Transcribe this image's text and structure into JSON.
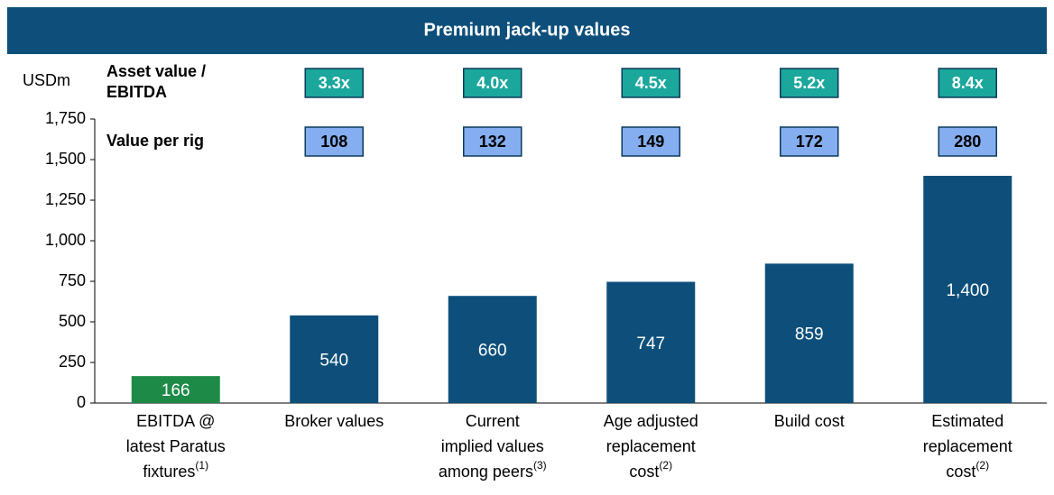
{
  "chart_data": {
    "type": "bar",
    "title": "Premium jack-up values",
    "unit_label": "USDm",
    "categories": [
      [
        "EBITDA @",
        "latest Paratus",
        "fixtures"
      ],
      [
        "Broker values"
      ],
      [
        "Current",
        "implied values",
        "among peers"
      ],
      [
        "Age adjusted",
        "replacement",
        "cost"
      ],
      [
        "Build cost"
      ],
      [
        "Estimated",
        "replacement",
        "cost"
      ]
    ],
    "category_notes": [
      "(1)",
      null,
      "(3)",
      "(2)",
      null,
      "(2)"
    ],
    "values": [
      166,
      540,
      660,
      747,
      859,
      1400
    ],
    "value_labels": [
      "166",
      "540",
      "660",
      "747",
      "859",
      "1,400"
    ],
    "colors": [
      "#1e8a48",
      "#0d4f7a",
      "#0d4f7a",
      "#0d4f7a",
      "#0d4f7a",
      "#0d4f7a"
    ],
    "ylim": [
      0,
      1750
    ],
    "yticks": [
      0,
      250,
      500,
      750,
      {
        "value": 1000,
        "label": "1,000"
      },
      {
        "value": 1250,
        "label": "1,250"
      },
      {
        "value": 1500,
        "label": "1,500"
      },
      {
        "value": 1750,
        "label": "1,750"
      }
    ],
    "multiples": {
      "label": [
        "Asset value /",
        "EBITDA"
      ],
      "values": [
        3.3,
        4.0,
        4.5,
        5.2,
        8.4
      ],
      "value_labels": [
        "3.3x",
        "4.0x",
        "4.5x",
        "5.2x",
        "8.4x"
      ],
      "color": "#1ba79c"
    },
    "per_rig": {
      "label": "Value per rig",
      "values": [
        108,
        132,
        149,
        172,
        280
      ],
      "color": "#85aef0"
    }
  }
}
